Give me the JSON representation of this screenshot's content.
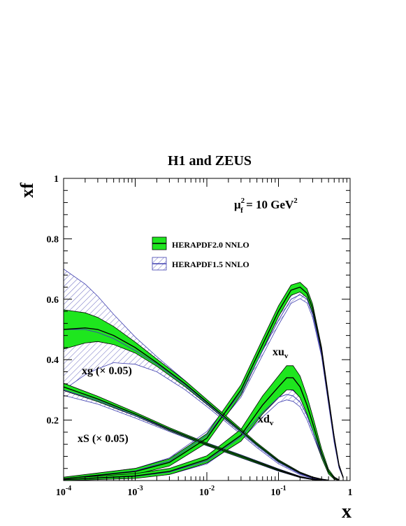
{
  "chart_data": {
    "type": "line",
    "title": "H1 and ZEUS",
    "scale_label": {
      "base": "μ",
      "sub": "f",
      "sup": "2",
      "rest": " = 10 GeV",
      "rest_sup": "2"
    },
    "xlabel": "x",
    "ylabel": "xf",
    "x_scale": "log",
    "xlim": [
      0.0001,
      1
    ],
    "ylim": [
      0,
      1
    ],
    "x_ticks": [
      {
        "value": 0.0001,
        "base": "10",
        "exp": "-4"
      },
      {
        "value": 0.001,
        "base": "10",
        "exp": "-3"
      },
      {
        "value": 0.01,
        "base": "10",
        "exp": "-2"
      },
      {
        "value": 0.1,
        "base": "10",
        "exp": "-1"
      },
      {
        "value": 1,
        "base": "1",
        "exp": ""
      }
    ],
    "y_ticks": [
      {
        "value": 0.2,
        "label": "0.2"
      },
      {
        "value": 0.4,
        "label": "0.4"
      },
      {
        "value": 0.6,
        "label": "0.6"
      },
      {
        "value": 0.8,
        "label": "0.8"
      },
      {
        "value": 1.0,
        "label": "1"
      }
    ],
    "grid": false,
    "legend_position": "top-center",
    "legend": [
      {
        "label": "HERAPDF2.0 NNLO",
        "style": "filled-band",
        "color": "#1ee61e"
      },
      {
        "label": "HERAPDF1.5 NNLO",
        "style": "hatched-band",
        "color": "#4040b0"
      }
    ],
    "curve_labels": [
      {
        "curve": "xuv",
        "base": "xu",
        "sub": "v"
      },
      {
        "curve": "xdv",
        "base": "xd",
        "sub": "v"
      },
      {
        "curve": "xg",
        "text": "xg (× 0.05)"
      },
      {
        "curve": "xS",
        "text": "xS (× 0.05)"
      }
    ],
    "series": [
      {
        "key": "xuv",
        "x": [
          0.0001,
          0.001,
          0.003,
          0.01,
          0.03,
          0.06,
          0.1,
          0.15,
          0.2,
          0.25,
          0.3,
          0.4,
          0.5,
          0.6,
          0.7,
          0.8
        ],
        "central": [
          0.006,
          0.03,
          0.06,
          0.14,
          0.3,
          0.45,
          0.56,
          0.63,
          0.64,
          0.62,
          0.57,
          0.43,
          0.27,
          0.14,
          0.05,
          0.01
        ],
        "v20_band": [
          0.005,
          0.01,
          0.012,
          0.015,
          0.017,
          0.018,
          0.018,
          0.017,
          0.016,
          0.015,
          0.014,
          0.012,
          0.01,
          0.007,
          0.004,
          0.002
        ],
        "v15_center": [
          0.006,
          0.032,
          0.065,
          0.15,
          0.29,
          0.43,
          0.53,
          0.6,
          0.615,
          0.6,
          0.55,
          0.42,
          0.26,
          0.13,
          0.045,
          0.01
        ],
        "v15_band": [
          0.004,
          0.008,
          0.01,
          0.012,
          0.014,
          0.015,
          0.015,
          0.014,
          0.013,
          0.012,
          0.011,
          0.01,
          0.008,
          0.006,
          0.003,
          0.002
        ]
      },
      {
        "key": "xdv",
        "x": [
          0.0001,
          0.001,
          0.003,
          0.01,
          0.03,
          0.06,
          0.1,
          0.13,
          0.16,
          0.2,
          0.25,
          0.3,
          0.4,
          0.5,
          0.6,
          0.7
        ],
        "central": [
          0.003,
          0.015,
          0.03,
          0.07,
          0.15,
          0.25,
          0.31,
          0.34,
          0.34,
          0.31,
          0.25,
          0.19,
          0.09,
          0.03,
          0.008,
          0.002
        ],
        "v20_band": [
          0.004,
          0.008,
          0.01,
          0.012,
          0.02,
          0.03,
          0.036,
          0.04,
          0.04,
          0.036,
          0.03,
          0.024,
          0.015,
          0.008,
          0.004,
          0.001
        ],
        "v15_center": [
          0.003,
          0.014,
          0.028,
          0.065,
          0.145,
          0.225,
          0.275,
          0.285,
          0.28,
          0.26,
          0.215,
          0.165,
          0.085,
          0.03,
          0.008,
          0.002
        ],
        "v15_band": [
          0.003,
          0.006,
          0.008,
          0.01,
          0.012,
          0.015,
          0.017,
          0.018,
          0.018,
          0.016,
          0.014,
          0.012,
          0.008,
          0.005,
          0.003,
          0.001
        ]
      },
      {
        "key": "xg",
        "x": [
          0.0001,
          0.0002,
          0.0003,
          0.0005,
          0.001,
          0.002,
          0.005,
          0.01,
          0.02,
          0.05,
          0.1,
          0.2,
          0.3,
          0.4,
          0.5
        ],
        "central": [
          0.5,
          0.505,
          0.5,
          0.48,
          0.44,
          0.39,
          0.32,
          0.26,
          0.2,
          0.12,
          0.065,
          0.025,
          0.01,
          0.004,
          0.001
        ],
        "v20_band": [
          0.065,
          0.05,
          0.04,
          0.03,
          0.018,
          0.012,
          0.01,
          0.008,
          0.007,
          0.005,
          0.004,
          0.003,
          0.002,
          0.001,
          0.0005
        ],
        "v15_center": [
          0.5,
          0.5,
          0.49,
          0.47,
          0.43,
          0.385,
          0.315,
          0.255,
          0.195,
          0.115,
          0.06,
          0.022,
          0.009,
          0.003,
          0.001
        ],
        "v15_band": [
          0.2,
          0.15,
          0.12,
          0.08,
          0.045,
          0.025,
          0.015,
          0.01,
          0.008,
          0.006,
          0.005,
          0.003,
          0.002,
          0.001,
          0.0005
        ]
      },
      {
        "key": "xS",
        "x": [
          0.0001,
          0.0003,
          0.001,
          0.003,
          0.01,
          0.03,
          0.1,
          0.2,
          0.3,
          0.4
        ],
        "central": [
          0.31,
          0.27,
          0.22,
          0.17,
          0.12,
          0.08,
          0.035,
          0.012,
          0.004,
          0.001
        ],
        "v20_band": [
          0.012,
          0.009,
          0.006,
          0.005,
          0.004,
          0.004,
          0.003,
          0.002,
          0.001,
          0.0005
        ],
        "v15_center": [
          0.3,
          0.265,
          0.215,
          0.168,
          0.12,
          0.08,
          0.035,
          0.012,
          0.004,
          0.001
        ],
        "v15_band": [
          0.018,
          0.012,
          0.008,
          0.006,
          0.005,
          0.005,
          0.004,
          0.002,
          0.001,
          0.0005
        ]
      }
    ]
  }
}
